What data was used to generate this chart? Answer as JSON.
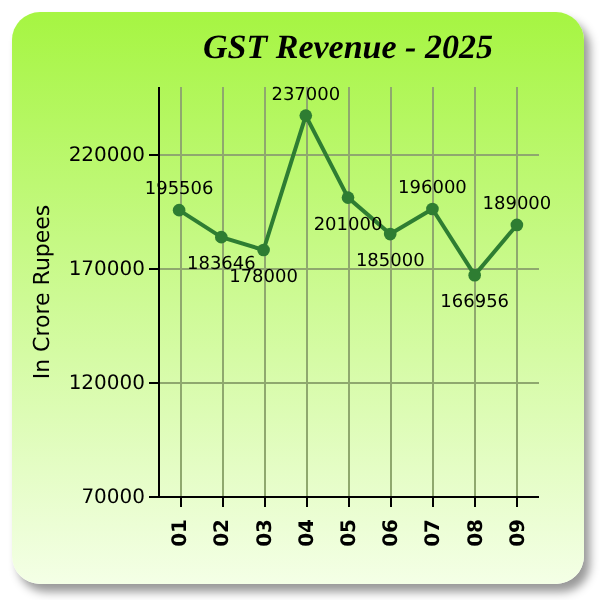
{
  "chart_data": {
    "type": "line",
    "title": "GST Revenue - 2025",
    "ylabel": "In Crore Rupees",
    "categories": [
      "01",
      "02",
      "03",
      "04",
      "05",
      "06",
      "07",
      "08",
      "09"
    ],
    "series": [
      {
        "color": "#2e7d32",
        "values": [
          195506,
          183646,
          178000,
          237000,
          201000,
          185000,
          196000,
          166956,
          189000
        ]
      }
    ],
    "ylim": [
      70000,
      250000
    ],
    "yticks": [
      70000,
      120000,
      170000,
      220000
    ],
    "grid": true,
    "marker": "circle",
    "data_labels": true
  }
}
